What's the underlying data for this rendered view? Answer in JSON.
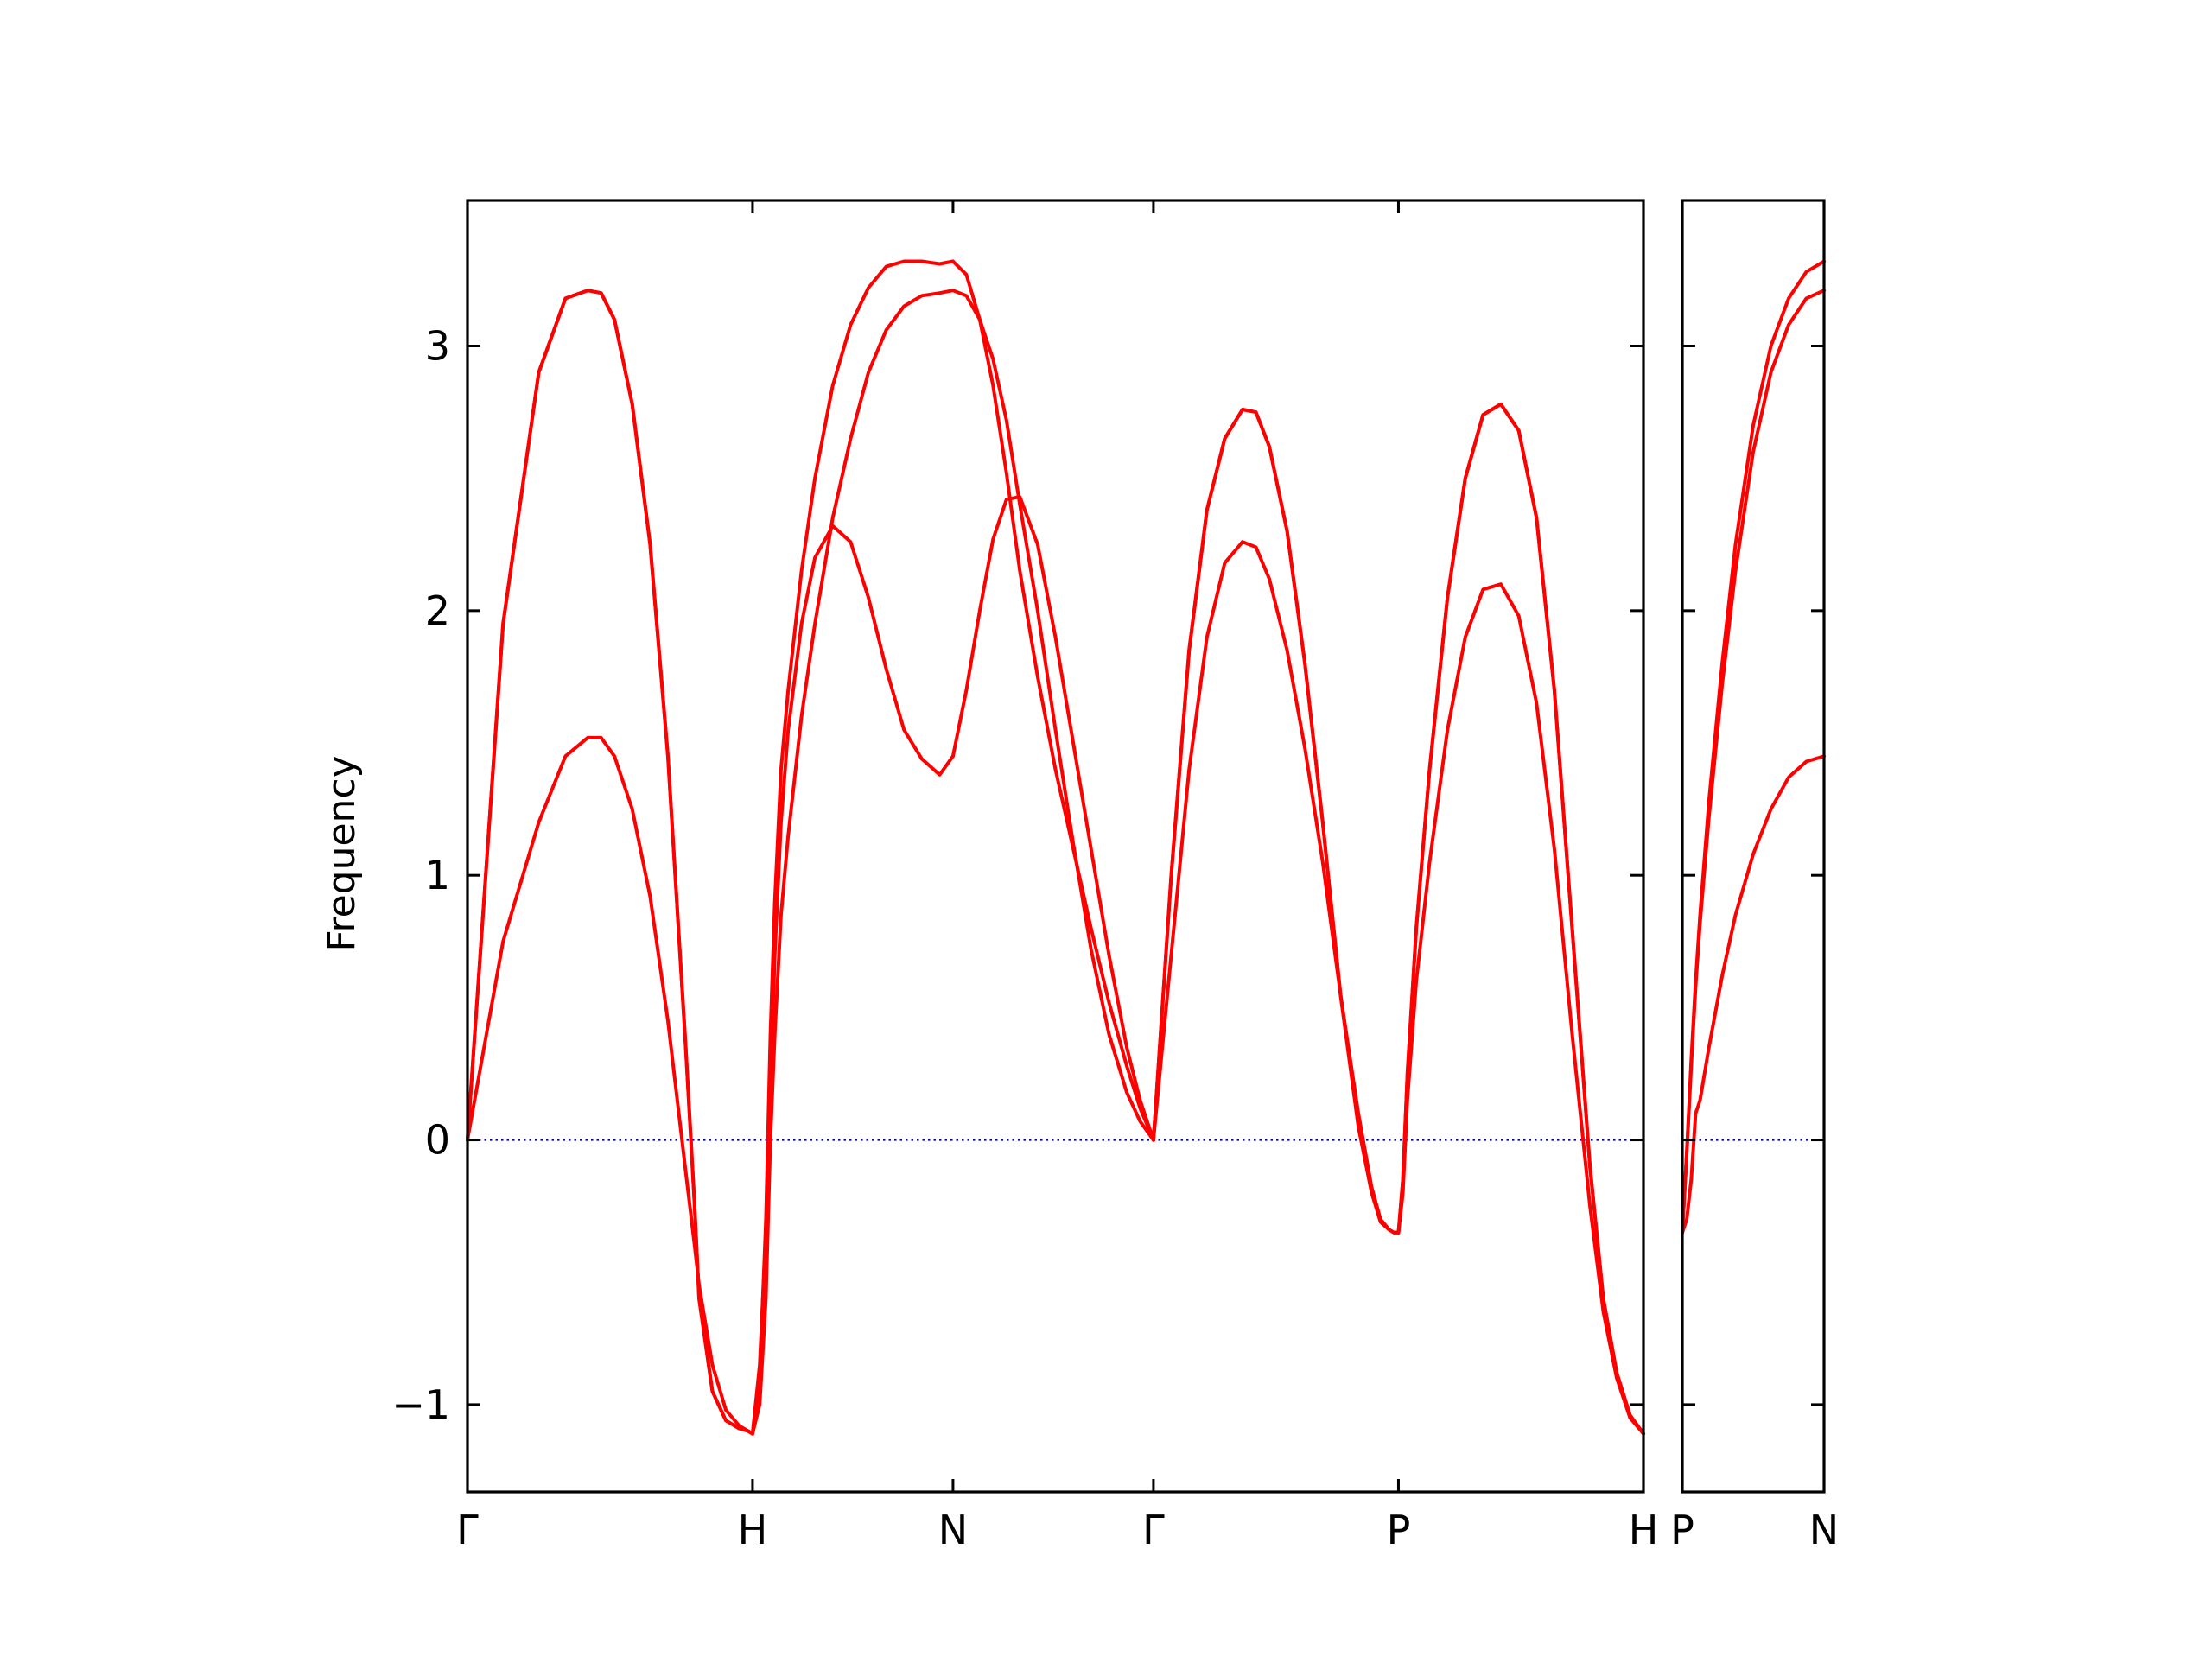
{
  "chart_data": {
    "type": "line",
    "ylabel": "Frequency",
    "ylim": [
      -1.33,
      3.55
    ],
    "yticks": [
      -1,
      0,
      1,
      2,
      3
    ],
    "ytick_labels": [
      "−1",
      "0",
      "1",
      "2",
      "3"
    ],
    "zero_line_color": "#0000cc",
    "band_color": "#ff0000",
    "panels": [
      {
        "name": "main",
        "xlim": [
          0,
          1.32
        ],
        "ticks": [
          {
            "x": 0.0,
            "label": "Γ"
          },
          {
            "x": 0.32,
            "label": "H"
          },
          {
            "x": 0.545,
            "label": "N"
          },
          {
            "x": 0.77,
            "label": "Γ"
          },
          {
            "x": 1.045,
            "label": "P"
          },
          {
            "x": 1.32,
            "label": "H"
          }
        ],
        "segments": [
          {
            "x": [
              0.0,
              0.04,
              0.08,
              0.11,
              0.135,
              0.15,
              0.165,
              0.185,
              0.205,
              0.225,
              0.245,
              0.255,
              0.26,
              0.275,
              0.29,
              0.305,
              0.315,
              0.32
            ],
            "bands": [
              [
                0.0,
                0.75,
                1.2,
                1.45,
                1.52,
                1.52,
                1.45,
                1.25,
                0.92,
                0.45,
                -0.12,
                -0.4,
                -0.55,
                -0.85,
                -1.02,
                -1.08,
                -1.1,
                -1.11
              ],
              [
                0.0,
                1.95,
                2.9,
                3.18,
                3.21,
                3.2,
                3.1,
                2.78,
                2.25,
                1.45,
                0.35,
                -0.25,
                -0.6,
                -0.95,
                -1.06,
                -1.09,
                -1.1,
                -1.11
              ],
              [
                0.0,
                1.95,
                2.9,
                3.18,
                3.21,
                3.2,
                3.1,
                2.78,
                2.25,
                1.45,
                0.35,
                -0.25,
                -0.6,
                -0.95,
                -1.06,
                -1.09,
                -1.1,
                -1.11
              ]
            ]
          },
          {
            "x": [
              0.32,
              0.328,
              0.335,
              0.34,
              0.345,
              0.352,
              0.36,
              0.375,
              0.39,
              0.41,
              0.43,
              0.45,
              0.47,
              0.49,
              0.51,
              0.53,
              0.545
            ],
            "bands": [
              [
                -1.11,
                -0.85,
                -0.35,
                0.2,
                0.7,
                1.2,
                1.55,
                1.95,
                2.2,
                2.32,
                2.26,
                2.05,
                1.78,
                1.55,
                1.44,
                1.38,
                1.45
              ],
              [
                -1.11,
                -0.9,
                -0.3,
                0.4,
                0.9,
                1.4,
                1.7,
                2.15,
                2.5,
                2.85,
                3.08,
                3.22,
                3.3,
                3.32,
                3.32,
                3.31,
                3.32
              ],
              [
                -1.11,
                -1.0,
                -0.6,
                0.0,
                0.4,
                0.85,
                1.15,
                1.6,
                1.95,
                2.35,
                2.65,
                2.9,
                3.06,
                3.15,
                3.19,
                3.2,
                3.21
              ]
            ]
          },
          {
            "x": [
              0.545,
              0.56,
              0.575,
              0.59,
              0.605,
              0.62,
              0.64,
              0.66,
              0.68,
              0.7,
              0.72,
              0.74,
              0.755,
              0.77
            ],
            "bands": [
              [
                1.45,
                1.7,
                2.0,
                2.27,
                2.42,
                2.43,
                2.25,
                1.9,
                1.5,
                1.1,
                0.7,
                0.35,
                0.15,
                0.0
              ],
              [
                3.32,
                3.27,
                3.1,
                2.85,
                2.52,
                2.15,
                1.75,
                1.4,
                1.1,
                0.8,
                0.52,
                0.28,
                0.12,
                0.0
              ],
              [
                3.21,
                3.19,
                3.1,
                2.95,
                2.72,
                2.4,
                2.0,
                1.55,
                1.12,
                0.72,
                0.4,
                0.18,
                0.07,
                0.0
              ]
            ]
          },
          {
            "x": [
              0.77,
              0.79,
              0.81,
              0.83,
              0.85,
              0.87,
              0.885,
              0.9,
              0.92,
              0.94,
              0.96,
              0.98,
              1.0,
              1.015,
              1.025,
              1.035,
              1.04,
              1.045
            ],
            "bands": [
              [
                0.0,
                0.7,
                1.4,
                1.9,
                2.18,
                2.26,
                2.24,
                2.12,
                1.85,
                1.48,
                1.05,
                0.55,
                0.1,
                -0.18,
                -0.3,
                -0.34,
                -0.35,
                -0.35
              ],
              [
                0.0,
                1.0,
                1.85,
                2.38,
                2.65,
                2.76,
                2.75,
                2.62,
                2.3,
                1.8,
                1.2,
                0.55,
                0.05,
                -0.2,
                -0.31,
                -0.34,
                -0.35,
                -0.35
              ],
              [
                0.0,
                1.0,
                1.85,
                2.38,
                2.65,
                2.76,
                2.75,
                2.62,
                2.3,
                1.8,
                1.2,
                0.55,
                0.05,
                -0.2,
                -0.31,
                -0.34,
                -0.35,
                -0.35
              ]
            ]
          },
          {
            "x": [
              1.045,
              1.05,
              1.055,
              1.065,
              1.08,
              1.1,
              1.12,
              1.14,
              1.16,
              1.18,
              1.2,
              1.22,
              1.24,
              1.26,
              1.275,
              1.29,
              1.305,
              1.32
            ],
            "bands": [
              [
                -0.35,
                -0.2,
                0.15,
                0.6,
                1.05,
                1.55,
                1.9,
                2.08,
                2.1,
                1.98,
                1.65,
                1.1,
                0.4,
                -0.25,
                -0.65,
                -0.9,
                -1.05,
                -1.11
              ],
              [
                -0.35,
                -0.15,
                0.25,
                0.8,
                1.4,
                2.05,
                2.5,
                2.74,
                2.78,
                2.68,
                2.35,
                1.7,
                0.8,
                -0.1,
                -0.6,
                -0.88,
                -1.04,
                -1.11
              ],
              [
                -0.35,
                -0.15,
                0.25,
                0.8,
                1.4,
                2.05,
                2.5,
                2.74,
                2.78,
                2.68,
                2.35,
                1.7,
                0.8,
                -0.1,
                -0.6,
                -0.88,
                -1.04,
                -1.11
              ]
            ]
          }
        ]
      },
      {
        "name": "side",
        "xlim": [
          0,
          0.16
        ],
        "ticks": [
          {
            "x": 0.0,
            "label": "P"
          },
          {
            "x": 0.16,
            "label": "N"
          }
        ],
        "segments": [
          {
            "x": [
              0.0,
              0.005,
              0.01,
              0.015,
              0.02,
              0.03,
              0.045,
              0.06,
              0.08,
              0.1,
              0.12,
              0.14,
              0.16
            ],
            "bands": [
              [
                -0.35,
                -0.3,
                -0.15,
                0.1,
                0.15,
                0.35,
                0.62,
                0.85,
                1.08,
                1.25,
                1.37,
                1.43,
                1.45
              ],
              [
                -0.35,
                -0.05,
                0.3,
                0.6,
                0.85,
                1.28,
                1.8,
                2.25,
                2.7,
                3.0,
                3.18,
                3.28,
                3.32
              ],
              [
                -0.35,
                -0.05,
                0.28,
                0.58,
                0.82,
                1.22,
                1.72,
                2.15,
                2.6,
                2.9,
                3.08,
                3.18,
                3.21
              ]
            ]
          }
        ]
      }
    ]
  }
}
